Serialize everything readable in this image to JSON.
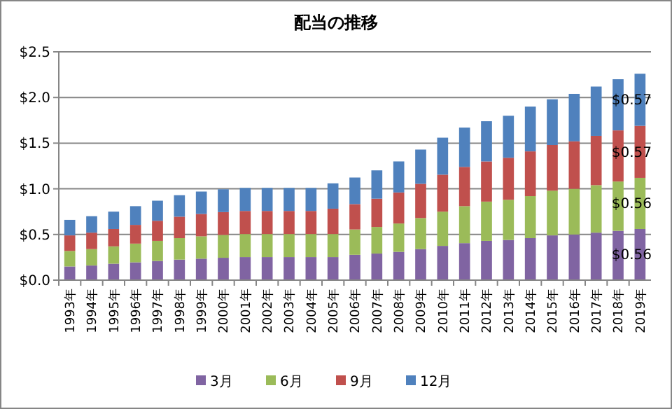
{
  "chart_data": {
    "type": "bar",
    "title": "配当の推移",
    "stacked": true,
    "grid": "y",
    "legend": "bottom",
    "categories": [
      "1993年",
      "1994年",
      "1995年",
      "1996年",
      "1997年",
      "1998年",
      "1999年",
      "2000年",
      "2001年",
      "2002年",
      "2003年",
      "2004年",
      "2005年",
      "2006年",
      "2007年",
      "2008年",
      "2009年",
      "2010年",
      "2011年",
      "2012年",
      "2013年",
      "2014年",
      "2015年",
      "2016年",
      "2017年",
      "2018年",
      "2019年"
    ],
    "ylim": [
      0,
      2.5
    ],
    "yticks": [
      {
        "value": 0,
        "label": "$0.0"
      },
      {
        "value": 0.5,
        "label": "$0.5"
      },
      {
        "value": 1,
        "label": "$1.0"
      },
      {
        "value": 1.5,
        "label": "$1.5"
      },
      {
        "value": 2,
        "label": "$2.0"
      },
      {
        "value": 2.5,
        "label": "$2.5"
      }
    ],
    "series": [
      {
        "name": "3月",
        "color": "#8064a2",
        "values": [
          0.15,
          0.16,
          0.18,
          0.195,
          0.21,
          0.225,
          0.235,
          0.245,
          0.2525,
          0.2525,
          0.2525,
          0.2525,
          0.2525,
          0.2775,
          0.291,
          0.31,
          0.34,
          0.375,
          0.405,
          0.43,
          0.44,
          0.46,
          0.49,
          0.5,
          0.52,
          0.54,
          0.56
        ],
        "value_labels": [
          null,
          null,
          null,
          null,
          null,
          null,
          null,
          null,
          null,
          null,
          null,
          null,
          null,
          null,
          null,
          null,
          null,
          null,
          null,
          null,
          null,
          null,
          null,
          null,
          null,
          null,
          "$0.56"
        ]
      },
      {
        "name": "6月",
        "color": "#9bbb59",
        "values": [
          0.17,
          0.18,
          0.19,
          0.205,
          0.22,
          0.235,
          0.245,
          0.25,
          0.2525,
          0.2525,
          0.2525,
          0.2525,
          0.2525,
          0.2775,
          0.291,
          0.31,
          0.34,
          0.375,
          0.405,
          0.43,
          0.44,
          0.46,
          0.49,
          0.5,
          0.52,
          0.54,
          0.56
        ],
        "value_labels": [
          null,
          null,
          null,
          null,
          null,
          null,
          null,
          null,
          null,
          null,
          null,
          null,
          null,
          null,
          null,
          null,
          null,
          null,
          null,
          null,
          null,
          null,
          null,
          null,
          null,
          null,
          "$0.56"
        ]
      },
      {
        "name": "9月",
        "color": "#c0504d",
        "values": [
          0.17,
          0.18,
          0.19,
          0.205,
          0.22,
          0.235,
          0.245,
          0.25,
          0.2525,
          0.2525,
          0.2525,
          0.2525,
          0.2775,
          0.2775,
          0.31,
          0.34,
          0.375,
          0.405,
          0.43,
          0.44,
          0.46,
          0.49,
          0.5,
          0.52,
          0.54,
          0.56,
          0.57
        ],
        "value_labels": [
          null,
          null,
          null,
          null,
          null,
          null,
          null,
          null,
          null,
          null,
          null,
          null,
          null,
          null,
          null,
          null,
          null,
          null,
          null,
          null,
          null,
          null,
          null,
          null,
          null,
          null,
          "$0.57"
        ]
      },
      {
        "name": "12月",
        "color": "#4f81bd",
        "values": [
          0.17,
          0.18,
          0.19,
          0.205,
          0.22,
          0.235,
          0.245,
          0.25,
          0.2525,
          0.2525,
          0.2525,
          0.2525,
          0.2775,
          0.291,
          0.31,
          0.34,
          0.375,
          0.405,
          0.43,
          0.44,
          0.46,
          0.49,
          0.5,
          0.52,
          0.54,
          0.56,
          0.57
        ],
        "value_labels": [
          null,
          null,
          null,
          null,
          null,
          null,
          null,
          null,
          null,
          null,
          null,
          null,
          null,
          null,
          null,
          null,
          null,
          null,
          null,
          null,
          null,
          null,
          null,
          null,
          null,
          null,
          "$0.57"
        ]
      }
    ]
  }
}
